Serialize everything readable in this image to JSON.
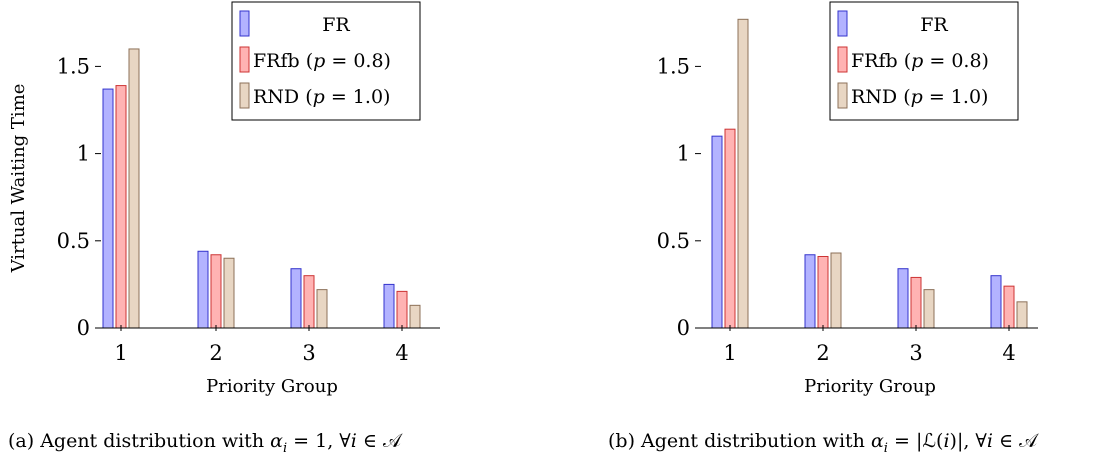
{
  "colors": {
    "FR_fill": "#b3b3ff",
    "FR_stroke": "#3333cc",
    "FRfb_fill": "#ffb3b3",
    "FRfb_stroke": "#cc3333",
    "RND_fill": "#e8d6c3",
    "RND_stroke": "#8c7058"
  },
  "legend": {
    "fr": "FR",
    "frfb": "FRfb",
    "frfb_param": "(p = 0.8)",
    "rnd": "RND",
    "rnd_param": "(p = 1.0)"
  },
  "chart_data": [
    {
      "type": "bar",
      "categories": [
        "1",
        "2",
        "3",
        "4"
      ],
      "series": [
        {
          "name": "FR",
          "values": [
            1.37,
            0.44,
            0.34,
            0.25
          ]
        },
        {
          "name": "FRfb (p = 0.8)",
          "values": [
            1.39,
            0.42,
            0.3,
            0.21
          ]
        },
        {
          "name": "RND (p = 1.0)",
          "values": [
            1.6,
            0.4,
            0.22,
            0.13
          ]
        }
      ],
      "xlabel": "Priority Group",
      "ylabel": "Virtual Waiting Time",
      "yticks": [
        "0",
        "0.5",
        "1",
        "1.5"
      ],
      "ylim": [
        0,
        1.75
      ],
      "grid": false,
      "legend_position": "top-right",
      "caption": "(a) Agent distribution with αi = 1, ∀i ∈ 𝒜"
    },
    {
      "type": "bar",
      "categories": [
        "1",
        "2",
        "3",
        "4"
      ],
      "series": [
        {
          "name": "FR",
          "values": [
            1.1,
            0.42,
            0.34,
            0.3
          ]
        },
        {
          "name": "FRfb (p = 0.8)",
          "values": [
            1.14,
            0.41,
            0.29,
            0.24
          ]
        },
        {
          "name": "RND (p = 1.0)",
          "values": [
            1.77,
            0.43,
            0.22,
            0.15
          ]
        }
      ],
      "xlabel": "Priority Group",
      "ylabel": "",
      "yticks": [
        "0",
        "0.5",
        "1",
        "1.5"
      ],
      "ylim": [
        0,
        1.75
      ],
      "grid": false,
      "legend_position": "top-right",
      "caption": "(b) Agent distribution with αi = |ℒ(i)|, ∀i ∈ 𝒜"
    }
  ]
}
